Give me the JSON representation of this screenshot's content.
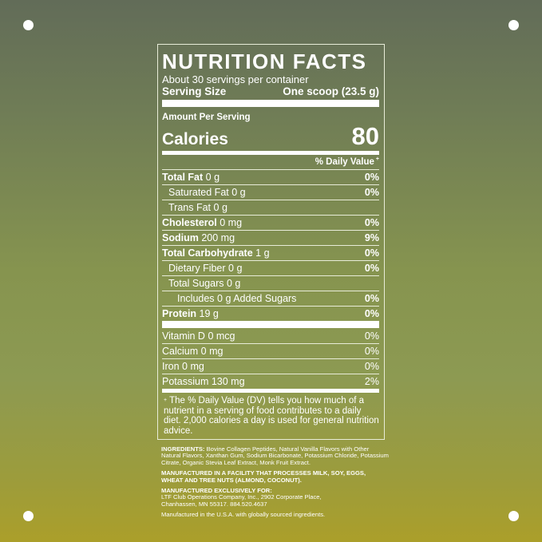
{
  "title": "NUTRITION FACTS",
  "servings": "About 30 servings per container",
  "serving_size_label": "Serving Size",
  "serving_size_value": "One scoop (23.5 g)",
  "amount_per_serving": "Amount Per Serving",
  "calories_label": "Calories",
  "calories_value": "80",
  "dv_header": "% Daily Value",
  "dv_mark": "+",
  "nutrients": [
    {
      "name": "Total Fat",
      "amount": "0 g",
      "dv": "0%",
      "bold": true,
      "indent": 0
    },
    {
      "name": "Saturated Fat",
      "amount": "0 g",
      "dv": "0%",
      "bold": false,
      "indent": 1
    },
    {
      "name": "Trans Fat",
      "amount": "0 g",
      "dv": "",
      "bold": false,
      "indent": 1
    },
    {
      "name": "Cholesterol",
      "amount": "0 mg",
      "dv": "0%",
      "bold": true,
      "indent": 0
    },
    {
      "name": "Sodium",
      "amount": "200 mg",
      "dv": "9%",
      "bold": true,
      "indent": 0
    },
    {
      "name": "Total Carbohydrate",
      "amount": "1 g",
      "dv": "0%",
      "bold": true,
      "indent": 0
    },
    {
      "name": "Dietary Fiber",
      "amount": "0 g",
      "dv": "0%",
      "bold": false,
      "indent": 1
    },
    {
      "name": "Total Sugars",
      "amount": "0 g",
      "dv": "",
      "bold": false,
      "indent": 1
    },
    {
      "name": "Includes",
      "amount": "0 g Added Sugars",
      "dv": "0%",
      "bold": false,
      "indent": 2
    },
    {
      "name": "Protein",
      "amount": "19 g",
      "dv": "0%",
      "bold": true,
      "indent": 0
    }
  ],
  "vitamins": [
    {
      "name": "Vitamin D",
      "amount": "0 mcg",
      "dv": "0%"
    },
    {
      "name": "Calcium",
      "amount": "0 mg",
      "dv": "0%"
    },
    {
      "name": "Iron",
      "amount": "0 mg",
      "dv": "0%"
    },
    {
      "name": "Potassium",
      "amount": "130 mg",
      "dv": "2%"
    }
  ],
  "footnote": "The % Daily Value (DV) tells you how much of a nutrient in a serving of food contributes to a daily diet. 2,000 calories a day is used for general nutrition advice.",
  "ingredients_label": "INGREDIENTS:",
  "ingredients": "Bovine Collagen Peptides, Natural Vanilla Flavors with Other Natural Flavors, Xanthan Gum, Sodium Bicarbonate, Potassium Chloride, Potassium Citrate, Organic Stevia Leaf Extract, Monk Fruit Extract.",
  "allergen": "MANUFACTURED IN A FACILITY THAT PROCESSES MILK, SOY, EGGS, WHEAT AND TREE NUTS (ALMOND, COCONUT).",
  "mfr_label": "MANUFACTURED EXCLUSIVELY FOR:",
  "mfr_line1": "LTF Club Operations Company, Inc., 2902 Corporate Place,",
  "mfr_line2": "Chanhassen, MN 55317. 884.520.4637",
  "origin": "Manufactured in the U.S.A. with globally sourced ingredients.",
  "colors": {
    "bg_top": "#626c58",
    "bg_mid": "#8d9a52",
    "bg_bottom": "#ab9f2a",
    "text": "#ffffff"
  }
}
